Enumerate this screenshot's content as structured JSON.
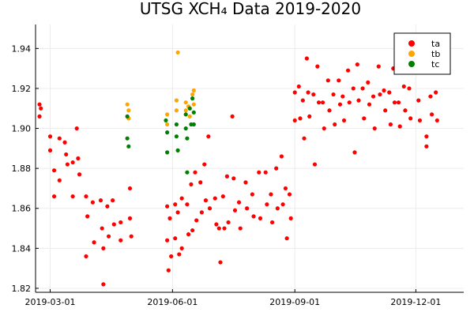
{
  "chart_data": {
    "type": "scatter",
    "title": "UTSG XCH₄ Data 2019-2020",
    "xlabel": "",
    "ylabel": "",
    "x_type": "date",
    "xlim": [
      "2019-02-18",
      "2020-01-06"
    ],
    "ylim": [
      1.818,
      1.952
    ],
    "grid": true,
    "legend_position": "top-right",
    "x_ticks": [
      {
        "value": "2019-03-01",
        "label": "2019-03-01"
      },
      {
        "value": "2019-06-01",
        "label": "2019-06-01"
      },
      {
        "value": "2019-09-01",
        "label": "2019-09-01"
      },
      {
        "value": "2019-12-01",
        "label": "2019-12-01"
      }
    ],
    "y_ticks": [
      {
        "value": 1.82,
        "label": "1.82"
      },
      {
        "value": 1.84,
        "label": "1.84"
      },
      {
        "value": 1.86,
        "label": "1.86"
      },
      {
        "value": 1.88,
        "label": "1.88"
      },
      {
        "value": 1.9,
        "label": "1.90"
      },
      {
        "value": 1.92,
        "label": "1.92"
      },
      {
        "value": 1.94,
        "label": "1.94"
      }
    ],
    "series": [
      {
        "name": "ta",
        "color": "#ff0000",
        "points": [
          {
            "x": "2019-02-21",
            "y": 1.912
          },
          {
            "x": "2019-02-21",
            "y": 1.906
          },
          {
            "x": "2019-02-22",
            "y": 1.91
          },
          {
            "x": "2019-03-01",
            "y": 1.896
          },
          {
            "x": "2019-03-01",
            "y": 1.889
          },
          {
            "x": "2019-03-04",
            "y": 1.879
          },
          {
            "x": "2019-03-04",
            "y": 1.866
          },
          {
            "x": "2019-03-08",
            "y": 1.895
          },
          {
            "x": "2019-03-08",
            "y": 1.874
          },
          {
            "x": "2019-03-12",
            "y": 1.893
          },
          {
            "x": "2019-03-13",
            "y": 1.887
          },
          {
            "x": "2019-03-14",
            "y": 1.882
          },
          {
            "x": "2019-03-18",
            "y": 1.883
          },
          {
            "x": "2019-03-18",
            "y": 1.866
          },
          {
            "x": "2019-03-21",
            "y": 1.9
          },
          {
            "x": "2019-03-22",
            "y": 1.885
          },
          {
            "x": "2019-03-23",
            "y": 1.877
          },
          {
            "x": "2019-03-28",
            "y": 1.866
          },
          {
            "x": "2019-03-28",
            "y": 1.836
          },
          {
            "x": "2019-03-29",
            "y": 1.856
          },
          {
            "x": "2019-04-02",
            "y": 1.863
          },
          {
            "x": "2019-04-03",
            "y": 1.843
          },
          {
            "x": "2019-04-08",
            "y": 1.864
          },
          {
            "x": "2019-04-09",
            "y": 1.85
          },
          {
            "x": "2019-04-10",
            "y": 1.84
          },
          {
            "x": "2019-04-10",
            "y": 1.822
          },
          {
            "x": "2019-04-13",
            "y": 1.861
          },
          {
            "x": "2019-04-14",
            "y": 1.846
          },
          {
            "x": "2019-04-17",
            "y": 1.864
          },
          {
            "x": "2019-04-18",
            "y": 1.852
          },
          {
            "x": "2019-04-23",
            "y": 1.853
          },
          {
            "x": "2019-04-23",
            "y": 1.844
          },
          {
            "x": "2019-04-30",
            "y": 1.87
          },
          {
            "x": "2019-04-30",
            "y": 1.855
          },
          {
            "x": "2019-05-01",
            "y": 1.846
          },
          {
            "x": "2019-05-28",
            "y": 1.861
          },
          {
            "x": "2019-05-28",
            "y": 1.844
          },
          {
            "x": "2019-05-29",
            "y": 1.829
          },
          {
            "x": "2019-05-30",
            "y": 1.855
          },
          {
            "x": "2019-05-31",
            "y": 1.836
          },
          {
            "x": "2019-06-03",
            "y": 1.862
          },
          {
            "x": "2019-06-03",
            "y": 1.845
          },
          {
            "x": "2019-06-05",
            "y": 1.858
          },
          {
            "x": "2019-06-06",
            "y": 1.837
          },
          {
            "x": "2019-06-08",
            "y": 1.865
          },
          {
            "x": "2019-06-08",
            "y": 1.84
          },
          {
            "x": "2019-06-12",
            "y": 1.862
          },
          {
            "x": "2019-06-13",
            "y": 1.847
          },
          {
            "x": "2019-06-15",
            "y": 1.872
          },
          {
            "x": "2019-06-16",
            "y": 1.849
          },
          {
            "x": "2019-06-18",
            "y": 1.878
          },
          {
            "x": "2019-06-19",
            "y": 1.854
          },
          {
            "x": "2019-06-22",
            "y": 1.873
          },
          {
            "x": "2019-06-23",
            "y": 1.858
          },
          {
            "x": "2019-06-25",
            "y": 1.882
          },
          {
            "x": "2019-06-26",
            "y": 1.864
          },
          {
            "x": "2019-06-28",
            "y": 1.896
          },
          {
            "x": "2019-06-29",
            "y": 1.86
          },
          {
            "x": "2019-07-03",
            "y": 1.865
          },
          {
            "x": "2019-07-04",
            "y": 1.852
          },
          {
            "x": "2019-07-06",
            "y": 1.85
          },
          {
            "x": "2019-07-07",
            "y": 1.833
          },
          {
            "x": "2019-07-09",
            "y": 1.866
          },
          {
            "x": "2019-07-10",
            "y": 1.85
          },
          {
            "x": "2019-07-12",
            "y": 1.876
          },
          {
            "x": "2019-07-13",
            "y": 1.853
          },
          {
            "x": "2019-07-16",
            "y": 1.906
          },
          {
            "x": "2019-07-17",
            "y": 1.875
          },
          {
            "x": "2019-07-18",
            "y": 1.859
          },
          {
            "x": "2019-07-21",
            "y": 1.863
          },
          {
            "x": "2019-07-22",
            "y": 1.85
          },
          {
            "x": "2019-07-26",
            "y": 1.873
          },
          {
            "x": "2019-07-27",
            "y": 1.86
          },
          {
            "x": "2019-07-31",
            "y": 1.867
          },
          {
            "x": "2019-08-01",
            "y": 1.856
          },
          {
            "x": "2019-08-05",
            "y": 1.878
          },
          {
            "x": "2019-08-06",
            "y": 1.855
          },
          {
            "x": "2019-08-10",
            "y": 1.878
          },
          {
            "x": "2019-08-11",
            "y": 1.862
          },
          {
            "x": "2019-08-14",
            "y": 1.867
          },
          {
            "x": "2019-08-15",
            "y": 1.853
          },
          {
            "x": "2019-08-18",
            "y": 1.88
          },
          {
            "x": "2019-08-19",
            "y": 1.86
          },
          {
            "x": "2019-08-22",
            "y": 1.886
          },
          {
            "x": "2019-08-23",
            "y": 1.862
          },
          {
            "x": "2019-08-25",
            "y": 1.87
          },
          {
            "x": "2019-08-26",
            "y": 1.845
          },
          {
            "x": "2019-08-28",
            "y": 1.867
          },
          {
            "x": "2019-08-29",
            "y": 1.855
          },
          {
            "x": "2019-09-01",
            "y": 1.918
          },
          {
            "x": "2019-09-01",
            "y": 1.904
          },
          {
            "x": "2019-09-04",
            "y": 1.921
          },
          {
            "x": "2019-09-05",
            "y": 1.905
          },
          {
            "x": "2019-09-07",
            "y": 1.914
          },
          {
            "x": "2019-09-08",
            "y": 1.895
          },
          {
            "x": "2019-09-10",
            "y": 1.935
          },
          {
            "x": "2019-09-11",
            "y": 1.918
          },
          {
            "x": "2019-09-12",
            "y": 1.906
          },
          {
            "x": "2019-09-15",
            "y": 1.917
          },
          {
            "x": "2019-09-16",
            "y": 1.882
          },
          {
            "x": "2019-09-18",
            "y": 1.931
          },
          {
            "x": "2019-09-19",
            "y": 1.913
          },
          {
            "x": "2019-09-22",
            "y": 1.913
          },
          {
            "x": "2019-09-23",
            "y": 1.9
          },
          {
            "x": "2019-09-26",
            "y": 1.924
          },
          {
            "x": "2019-09-27",
            "y": 1.909
          },
          {
            "x": "2019-09-30",
            "y": 1.917
          },
          {
            "x": "2019-10-01",
            "y": 1.902
          },
          {
            "x": "2019-10-04",
            "y": 1.924
          },
          {
            "x": "2019-10-05",
            "y": 1.912
          },
          {
            "x": "2019-10-07",
            "y": 1.916
          },
          {
            "x": "2019-10-08",
            "y": 1.904
          },
          {
            "x": "2019-10-11",
            "y": 1.929
          },
          {
            "x": "2019-10-12",
            "y": 1.913
          },
          {
            "x": "2019-10-15",
            "y": 1.92
          },
          {
            "x": "2019-10-16",
            "y": 1.888
          },
          {
            "x": "2019-10-18",
            "y": 1.932
          },
          {
            "x": "2019-10-19",
            "y": 1.914
          },
          {
            "x": "2019-10-22",
            "y": 1.92
          },
          {
            "x": "2019-10-23",
            "y": 1.905
          },
          {
            "x": "2019-10-26",
            "y": 1.923
          },
          {
            "x": "2019-10-27",
            "y": 1.912
          },
          {
            "x": "2019-10-30",
            "y": 1.916
          },
          {
            "x": "2019-10-31",
            "y": 1.9
          },
          {
            "x": "2019-11-03",
            "y": 1.931
          },
          {
            "x": "2019-11-04",
            "y": 1.917
          },
          {
            "x": "2019-11-07",
            "y": 1.919
          },
          {
            "x": "2019-11-08",
            "y": 1.909
          },
          {
            "x": "2019-11-11",
            "y": 1.918
          },
          {
            "x": "2019-11-12",
            "y": 1.902
          },
          {
            "x": "2019-11-14",
            "y": 1.93
          },
          {
            "x": "2019-11-15",
            "y": 1.913
          },
          {
            "x": "2019-11-18",
            "y": 1.913
          },
          {
            "x": "2019-11-19",
            "y": 1.901
          },
          {
            "x": "2019-11-22",
            "y": 1.921
          },
          {
            "x": "2019-11-23",
            "y": 1.909
          },
          {
            "x": "2019-11-26",
            "y": 1.92
          },
          {
            "x": "2019-11-27",
            "y": 1.905
          },
          {
            "x": "2019-12-03",
            "y": 1.914
          },
          {
            "x": "2019-12-04",
            "y": 1.904
          },
          {
            "x": "2019-12-09",
            "y": 1.896
          },
          {
            "x": "2019-12-09",
            "y": 1.891
          },
          {
            "x": "2019-12-12",
            "y": 1.916
          },
          {
            "x": "2019-12-13",
            "y": 1.907
          },
          {
            "x": "2019-12-15",
            "y": 1.932
          },
          {
            "x": "2019-12-16",
            "y": 1.918
          },
          {
            "x": "2019-12-17",
            "y": 1.904
          }
        ]
      },
      {
        "name": "tb",
        "color": "#ffa500",
        "points": [
          {
            "x": "2019-04-28",
            "y": 1.912
          },
          {
            "x": "2019-04-29",
            "y": 1.909
          },
          {
            "x": "2019-04-29",
            "y": 1.905
          },
          {
            "x": "2019-05-28",
            "y": 1.907
          },
          {
            "x": "2019-05-28",
            "y": 1.902
          },
          {
            "x": "2019-06-04",
            "y": 1.914
          },
          {
            "x": "2019-06-04",
            "y": 1.909
          },
          {
            "x": "2019-06-05",
            "y": 1.938
          },
          {
            "x": "2019-06-11",
            "y": 1.913
          },
          {
            "x": "2019-06-11",
            "y": 1.909
          },
          {
            "x": "2019-06-13",
            "y": 1.911
          },
          {
            "x": "2019-06-14",
            "y": 1.906
          },
          {
            "x": "2019-06-16",
            "y": 1.917
          },
          {
            "x": "2019-06-17",
            "y": 1.919
          },
          {
            "x": "2019-06-17",
            "y": 1.912
          }
        ]
      },
      {
        "name": "tc",
        "color": "#008000",
        "points": [
          {
            "x": "2019-04-28",
            "y": 1.906
          },
          {
            "x": "2019-04-28",
            "y": 1.895
          },
          {
            "x": "2019-04-29",
            "y": 1.891
          },
          {
            "x": "2019-05-27",
            "y": 1.904
          },
          {
            "x": "2019-05-28",
            "y": 1.898
          },
          {
            "x": "2019-05-28",
            "y": 1.888
          },
          {
            "x": "2019-06-04",
            "y": 1.902
          },
          {
            "x": "2019-06-04",
            "y": 1.896
          },
          {
            "x": "2019-06-05",
            "y": 1.889
          },
          {
            "x": "2019-06-11",
            "y": 1.907
          },
          {
            "x": "2019-06-11",
            "y": 1.9
          },
          {
            "x": "2019-06-12",
            "y": 1.895
          },
          {
            "x": "2019-06-12",
            "y": 1.878
          },
          {
            "x": "2019-06-14",
            "y": 1.91
          },
          {
            "x": "2019-06-15",
            "y": 1.902
          },
          {
            "x": "2019-06-16",
            "y": 1.915
          },
          {
            "x": "2019-06-17",
            "y": 1.908
          },
          {
            "x": "2019-06-17",
            "y": 1.902
          }
        ]
      }
    ]
  }
}
